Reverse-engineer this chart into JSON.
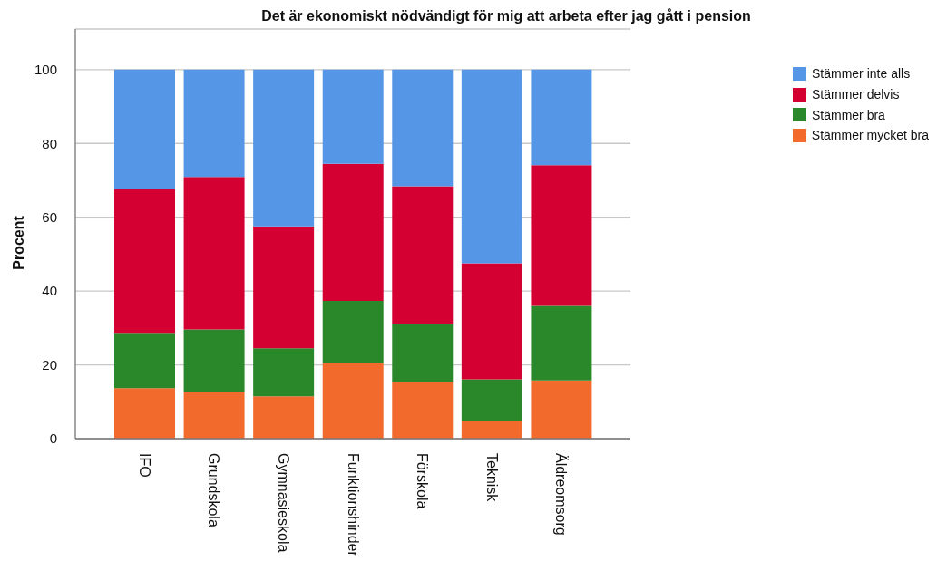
{
  "chart_data": {
    "type": "bar",
    "title": "Det är ekonomiskt nödvändigt för mig att arbeta efter jag gått i pension",
    "ylabel": "Procent",
    "categories": [
      "IFO",
      "Grundskola",
      "Gymnasieskola",
      "Funktionshinder",
      "Förskola",
      "Teknisk",
      "Äldreomsorg"
    ],
    "stacked": true,
    "series": [
      {
        "name": "Stämmer mycket bra",
        "color": "#f26a2c",
        "values": [
          13.7,
          12.5,
          11.5,
          20.4,
          15.4,
          4.9,
          15.8
        ]
      },
      {
        "name": "Stämmer bra",
        "color": "#2a872a",
        "values": [
          15.0,
          17.1,
          13.0,
          16.9,
          15.6,
          11.2,
          20.2
        ]
      },
      {
        "name": "Stämmer delvis",
        "color": "#d50032",
        "values": [
          39.0,
          41.3,
          33.0,
          37.2,
          37.4,
          31.4,
          38.1
        ]
      },
      {
        "name": "Stämmer inte alls",
        "color": "#5596e6",
        "values": [
          32.3,
          29.1,
          42.5,
          25.5,
          31.6,
          52.5,
          25.9
        ]
      }
    ],
    "ylim": [
      0,
      111
    ],
    "yticks": [
      0,
      20,
      40,
      60,
      80,
      100
    ],
    "grid": "y",
    "legend": "right"
  }
}
